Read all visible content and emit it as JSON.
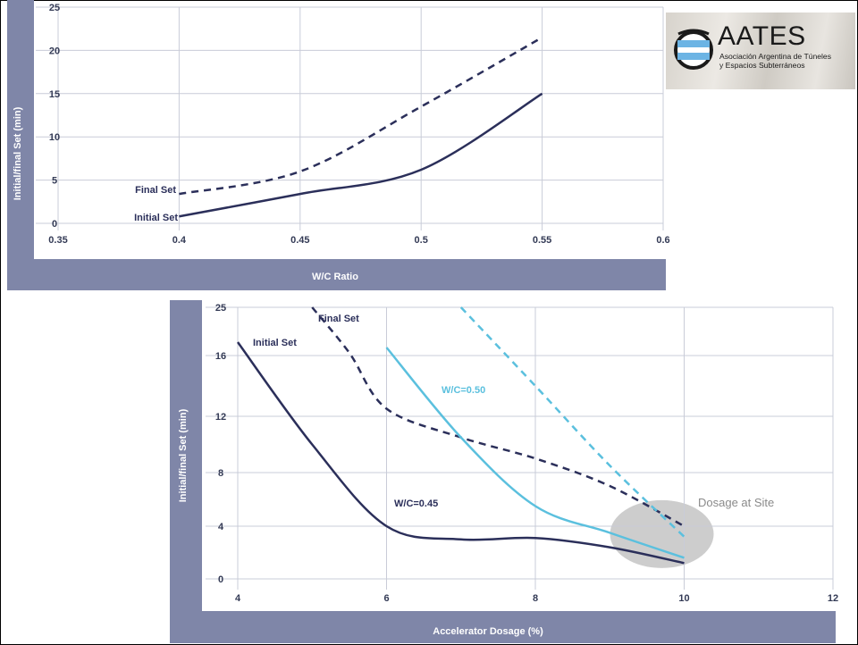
{
  "chart_data": [
    {
      "type": "line",
      "title": "",
      "xlabel": "W/C Ratio",
      "ylabel": "Initial/final Set (min)",
      "xlim": [
        0.35,
        0.6
      ],
      "ylim": [
        0,
        25
      ],
      "xticks": [
        "0.35",
        "0.4",
        "0.45",
        "0.5",
        "0.55",
        "0.6"
      ],
      "yticks": [
        "0",
        "5",
        "10",
        "15",
        "20",
        "25"
      ],
      "grid": true,
      "series": [
        {
          "name": "Final Set",
          "style": "dashed",
          "color": "#2b2f5a",
          "x": [
            0.4,
            0.45,
            0.5,
            0.55
          ],
          "y": [
            3.4,
            6,
            13.5,
            21.5
          ]
        },
        {
          "name": "Initial Set",
          "style": "solid",
          "color": "#2b2f5a",
          "x": [
            0.4,
            0.45,
            0.5,
            0.55
          ],
          "y": [
            0.8,
            3.4,
            6.2,
            15
          ]
        }
      ]
    },
    {
      "type": "line",
      "title": "",
      "xlabel": "Accelerator Dosage (%)",
      "ylabel": "Initial/final Set (min)",
      "xlim": [
        4,
        12
      ],
      "ylim": [
        0,
        25
      ],
      "xticks": [
        "4",
        "6",
        "8",
        "10",
        "12"
      ],
      "yticks": [
        "0",
        "4",
        "8",
        "12",
        "16",
        "25"
      ],
      "grid": true,
      "series": [
        {
          "name": "Initial Set",
          "style": "solid",
          "color": "#2b2f5a",
          "x": [
            4,
            5,
            6,
            7,
            8,
            9,
            10
          ],
          "y": [
            18.5,
            10,
            4,
            3,
            3.1,
            2.4,
            1.2
          ]
        },
        {
          "name": "Final Set",
          "style": "dashed",
          "color": "#2b2f5a",
          "x": [
            5,
            5.5,
            6,
            7,
            8,
            9,
            10
          ],
          "y": [
            25,
            16.5,
            12.5,
            10.5,
            9,
            7,
            4
          ]
        },
        {
          "name": "W/C=0.50",
          "style": "solid",
          "color": "#5bc0de",
          "x": [
            6,
            7,
            8,
            9,
            10
          ],
          "y": [
            17.5,
            10.5,
            5.5,
            3.5,
            1.6
          ]
        },
        {
          "name": "",
          "style": "dashed",
          "color": "#5bc0de",
          "x": [
            7,
            8,
            9,
            10
          ],
          "y": [
            25,
            14,
            8.5,
            3.2
          ]
        }
      ],
      "annotations": [
        "W/C=0.45",
        "Dosage at Site"
      ]
    }
  ],
  "labels": {
    "c1_final": "Final Set",
    "c1_initial": "Initial Set",
    "c2_initial": "Initial Set",
    "c2_final": "Final Set",
    "c2_wc050": "W/C=0.50",
    "c2_wc045": "W/C=0.45",
    "c2_site": "Dosage at Site"
  },
  "logo": {
    "name": "AATES",
    "subtitle_line1": "Asociación Argentina de Túneles",
    "subtitle_line2": "y Espacios Subterráneos"
  },
  "colors": {
    "panel": "#7f86a8",
    "navy": "#2b2f5a",
    "cyan": "#5bc0de",
    "grid": "#c9ccd8"
  }
}
